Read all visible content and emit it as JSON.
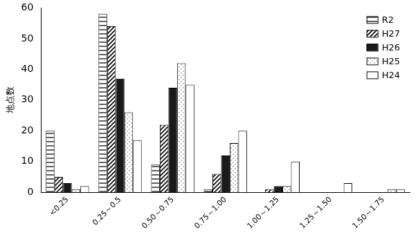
{
  "chart_data": {
    "type": "bar",
    "y_label": "地点数",
    "categories": [
      "<0.25",
      "0.25～0.5",
      "0.50～0.75",
      "0.75～1.00",
      "1.00～1.25",
      "1.25～1.50",
      "1.50～1.75"
    ],
    "series": [
      {
        "name": "R2",
        "color": "#606060",
        "values": [
          20,
          58,
          9,
          1,
          0,
          0,
          0
        ]
      },
      {
        "name": "H27",
        "color": "#000000",
        "values": [
          5,
          54,
          22,
          6,
          1,
          0,
          0
        ]
      },
      {
        "name": "H26",
        "color": "#1a1a1a",
        "values": [
          3,
          37,
          34,
          12,
          2,
          0,
          0
        ]
      },
      {
        "name": "H25",
        "color": "#bfbfbf",
        "values": [
          1,
          26,
          42,
          16,
          2,
          0,
          1
        ]
      },
      {
        "name": "H24",
        "color": "#ffffff",
        "values": [
          2,
          17,
          35,
          20,
          10,
          3,
          1
        ]
      }
    ],
    "ylim": [
      0,
      60
    ],
    "yticks": [
      0,
      10,
      20,
      30,
      40,
      50,
      60
    ],
    "grid": false,
    "legend": "upper right"
  }
}
